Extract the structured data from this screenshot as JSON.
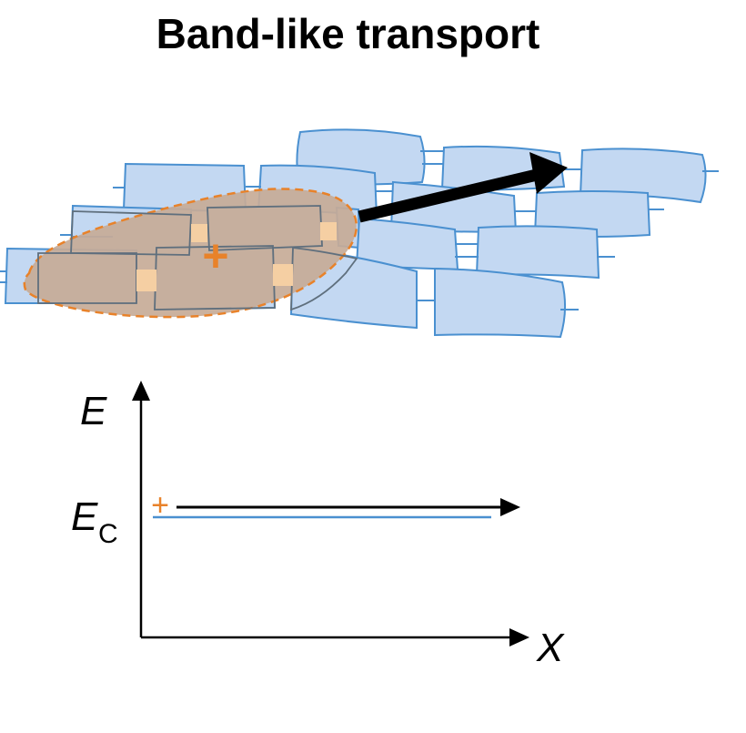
{
  "title": "Band-like transport",
  "energy_axis": {
    "y_label": "E",
    "x_label": "X",
    "level_label": "E",
    "level_subscript": "C"
  },
  "charge_symbol": "+",
  "colors": {
    "molecule_fill": "#c3d8f2",
    "molecule_stroke": "#4a90d0",
    "delocalized_fill": "#c7ab97",
    "delocalized_stroke": "#e8822a",
    "charge": "#e8822a",
    "arrow": "#000000",
    "band_line": "#4a90d0"
  }
}
